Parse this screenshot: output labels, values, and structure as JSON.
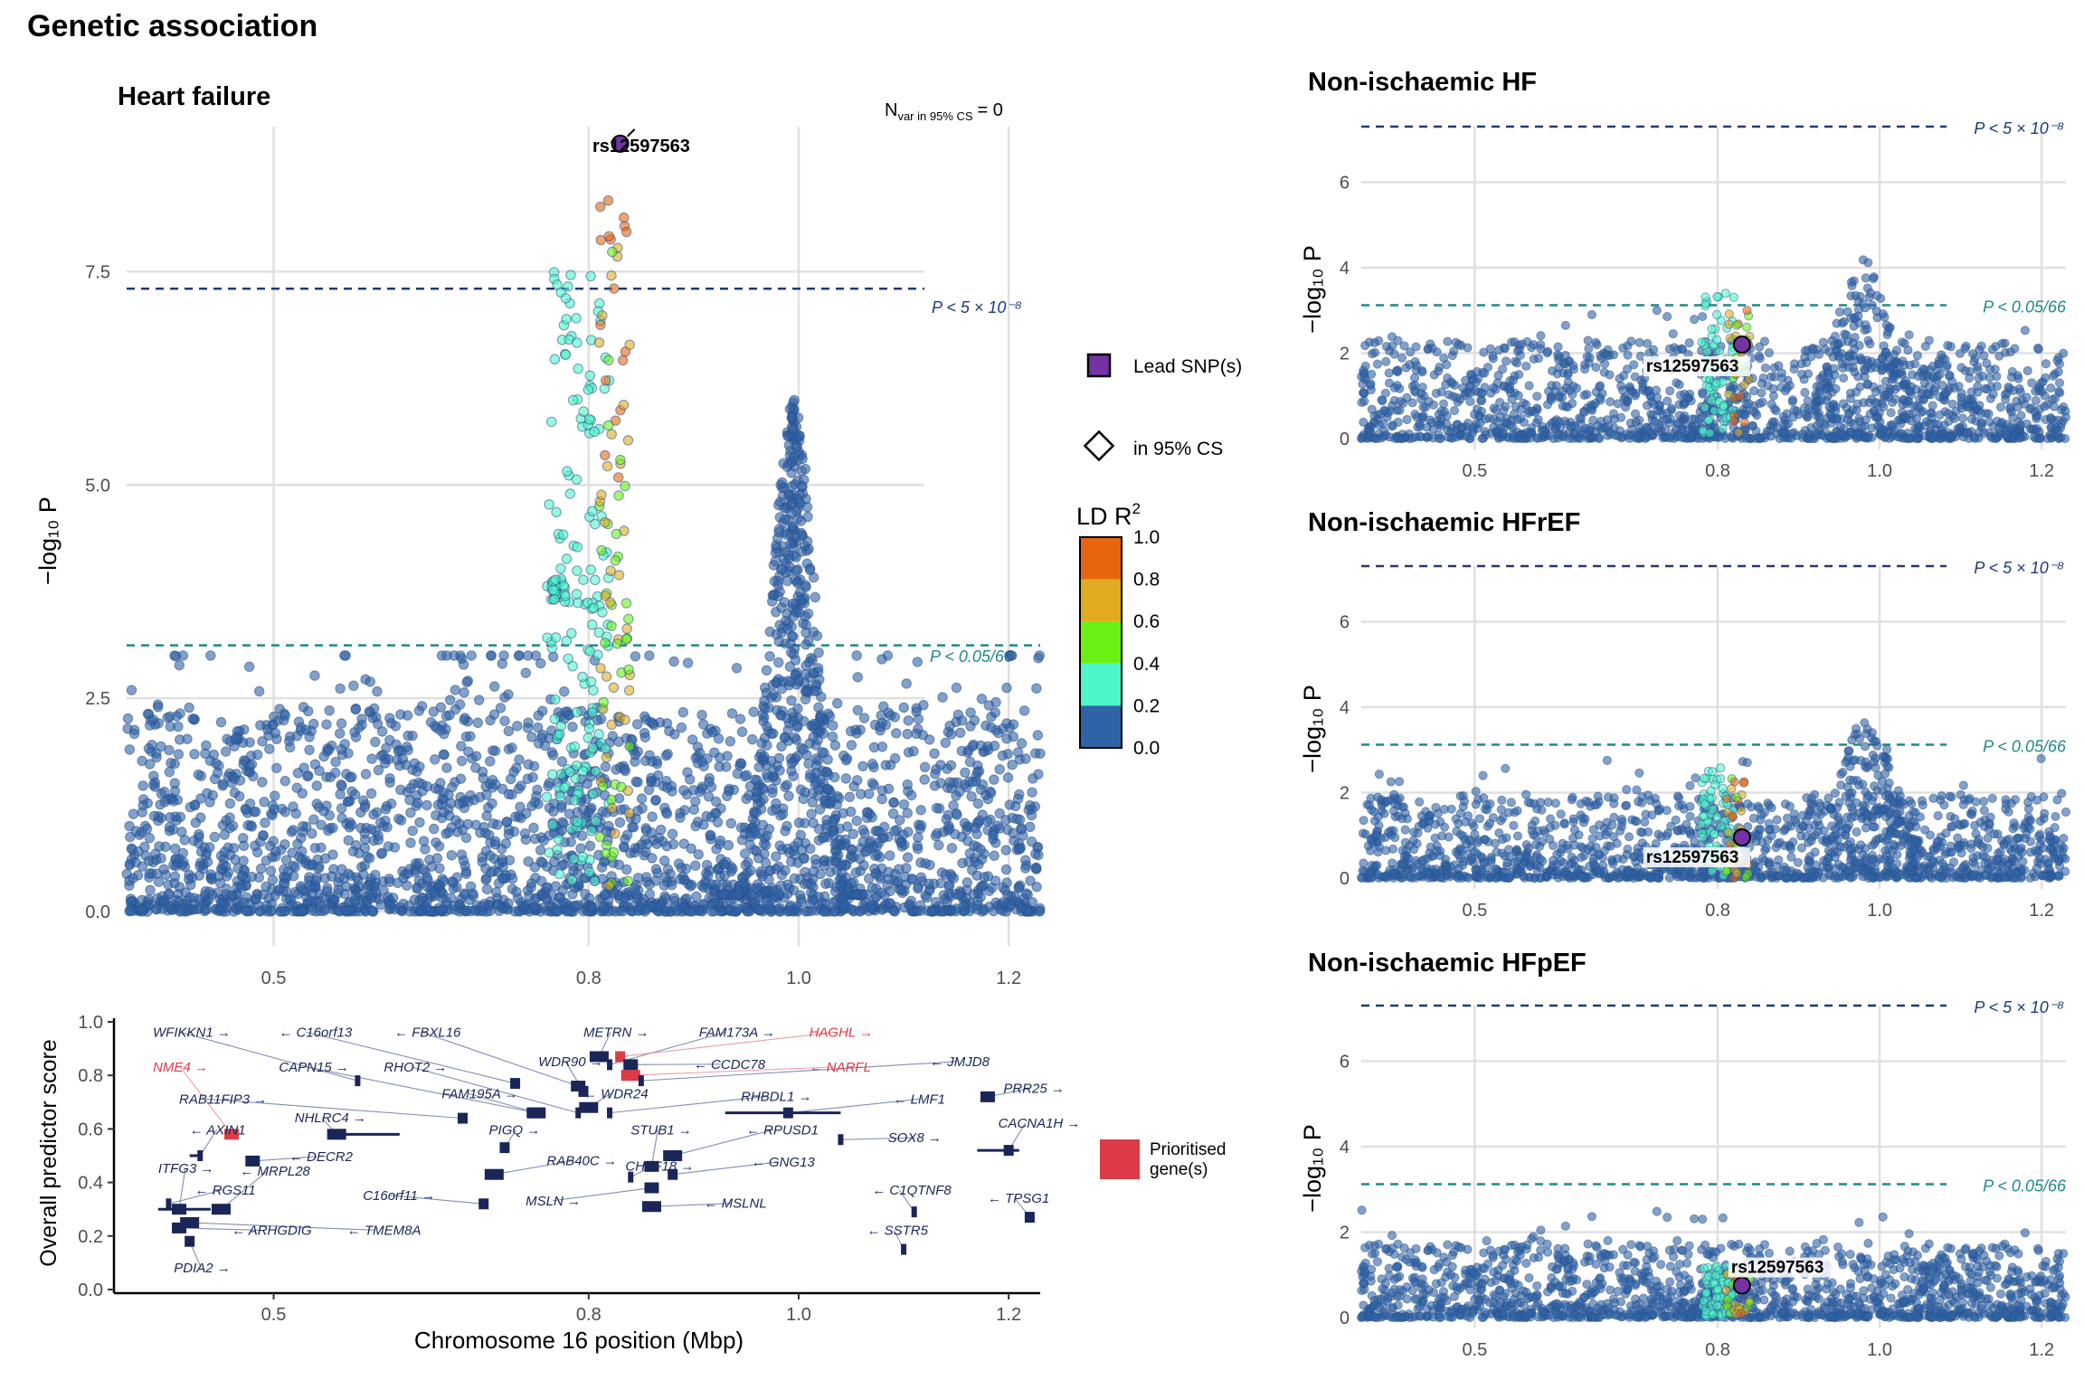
{
  "figure": {
    "title": "Genetic association"
  },
  "colors": {
    "ld_bins": [
      "#2E63A6",
      "#4EF5C9",
      "#6BF014",
      "#E0AB1E",
      "#E8650F"
    ],
    "lead": "#7433A3",
    "gw_line": "#1F3B73",
    "suggestive_line": "#1E8A86",
    "gene": "#1A2657",
    "prioritised": "#DC3B47"
  },
  "main_panel": {
    "title": "Heart failure",
    "ylabel": "−log₁₀ P",
    "n_var_prefix": "N",
    "n_var_sub": "var in 95% CS",
    "n_var_value": "= 0",
    "lead_label": "rs12597563",
    "gw_label": "P < 5 × 10⁻⁸",
    "sugg_label": "P < 0.05/66"
  },
  "gene_panel": {
    "ylabel": "Overall predictor score",
    "xlabel": "Chromosome 16 position (Mbp)"
  },
  "right_panels": [
    {
      "title": "Non-ischaemic HF",
      "ylabel": "−log₁₀ P",
      "lead_label": "rs12597563",
      "gw_label": "P < 5 × 10⁻⁸",
      "sugg_label": "P < 0.05/66"
    },
    {
      "title": "Non-ischaemic HFrEF",
      "ylabel": "−log₁₀ P",
      "lead_label": "rs12597563",
      "gw_label": "P < 5 × 10⁻⁸",
      "sugg_label": "P < 0.05/66"
    },
    {
      "title": "Non-ischaemic HFpEF",
      "ylabel": "−log₁₀ P",
      "lead_label": "rs12597563",
      "gw_label": "P < 5 × 10⁻⁸",
      "sugg_label": "P < 0.05/66"
    }
  ],
  "legend": {
    "lead_snp": "Lead SNP(s)",
    "in_cs": "in 95% CS",
    "ld_title": "LD R",
    "ld_ticks": [
      "1.0",
      "0.8",
      "0.6",
      "0.4",
      "0.2",
      "0.0"
    ],
    "prioritised_line1": "Prioritised",
    "prioritised_line2": "gene(s)"
  },
  "chart_data": [
    {
      "type": "scatter",
      "title": "Heart failure",
      "ylabel": "−log10 P",
      "xlim": [
        0.36,
        1.23
      ],
      "ylim": [
        0,
        9.2
      ],
      "x_ticks": [
        0.5,
        0.8,
        1.0,
        1.2
      ],
      "y_ticks": [
        0.0,
        2.5,
        5.0,
        7.5
      ],
      "grid": true,
      "thresholds": [
        {
          "label": "P < 5 × 10⁻⁸",
          "y": 7.3
        },
        {
          "label": "P < 0.05/66",
          "y": 3.12
        }
      ],
      "lead_snp": {
        "label": "rs12597563",
        "x": 0.83,
        "y": 9.0
      },
      "peaks": [
        {
          "x": 0.8,
          "y_max": 7.7,
          "ld": "0.2–0.4"
        },
        {
          "x": 0.82,
          "y_max": 8.5,
          "ld": "0.6–1.0"
        },
        {
          "x": 0.995,
          "y_max": 6.2,
          "ld": "0.0–0.2"
        }
      ],
      "background_range": [
        0,
        3
      ]
    },
    {
      "type": "table",
      "title": "",
      "ylabel": "Overall predictor score",
      "xlabel": "Chromosome 16 position (Mbp)",
      "y_ticks": [
        0.0,
        0.2,
        0.4,
        0.6,
        0.8,
        1.0
      ],
      "genes": [
        {
          "name": "WFIKKN1",
          "dir": "right",
          "lx": 0.385,
          "ly": 0.945,
          "x": 0.58,
          "y": 0.78,
          "prio": false
        },
        {
          "name": "C16orf13",
          "dir": "left",
          "lx": 0.505,
          "ly": 0.945,
          "x": 0.73,
          "y": 0.77,
          "prio": false
        },
        {
          "name": "FBXL16",
          "dir": "left",
          "lx": 0.615,
          "ly": 0.945,
          "x": 0.79,
          "y": 0.76,
          "prio": false
        },
        {
          "name": "METRN",
          "dir": "right",
          "lx": 0.795,
          "ly": 0.945,
          "x": 0.81,
          "y": 0.87,
          "prio": false
        },
        {
          "name": "FAM173A",
          "dir": "right",
          "lx": 0.905,
          "ly": 0.945,
          "x": 0.82,
          "y": 0.84,
          "prio": false
        },
        {
          "name": "HAGHL",
          "dir": "right",
          "lx": 1.01,
          "ly": 0.945,
          "x": 0.83,
          "y": 0.87,
          "prio": true
        },
        {
          "name": "NME4",
          "dir": "right",
          "lx": 0.385,
          "ly": 0.815,
          "x": 0.46,
          "y": 0.58,
          "prio": true
        },
        {
          "name": "CAPN15",
          "dir": "right",
          "lx": 0.505,
          "ly": 0.815,
          "x": 0.75,
          "y": 0.66,
          "prio": false
        },
        {
          "name": "RHOT2",
          "dir": "right",
          "lx": 0.605,
          "ly": 0.815,
          "x": 0.79,
          "y": 0.66,
          "prio": false
        },
        {
          "name": "WDR90",
          "dir": "right",
          "lx": 0.752,
          "ly": 0.835,
          "x": 0.795,
          "y": 0.74,
          "prio": false
        },
        {
          "name": "CCDC78",
          "dir": "left",
          "lx": 0.9,
          "ly": 0.825,
          "x": 0.84,
          "y": 0.84,
          "prio": false
        },
        {
          "name": "NARFL",
          "dir": "left",
          "lx": 1.01,
          "ly": 0.815,
          "x": 0.84,
          "y": 0.8,
          "prio": true
        },
        {
          "name": "JMJD8",
          "dir": "left",
          "lx": 1.125,
          "ly": 0.835,
          "x": 0.85,
          "y": 0.78,
          "prio": false
        },
        {
          "name": "RAB11FIP3",
          "dir": "right",
          "lx": 0.41,
          "ly": 0.695,
          "x": 0.68,
          "y": 0.64,
          "prio": false
        },
        {
          "name": "FAM195A",
          "dir": "right",
          "lx": 0.66,
          "ly": 0.715,
          "x": 0.75,
          "y": 0.66,
          "prio": false
        },
        {
          "name": "WDR24",
          "dir": "left",
          "lx": 0.795,
          "ly": 0.715,
          "x": 0.8,
          "y": 0.68,
          "prio": false
        },
        {
          "name": "RHBDL1",
          "dir": "right",
          "lx": 0.945,
          "ly": 0.705,
          "x": 0.82,
          "y": 0.66,
          "prio": false
        },
        {
          "name": "LMF1",
          "dir": "left",
          "lx": 1.09,
          "ly": 0.695,
          "x": 0.99,
          "y": 0.66,
          "prio": false
        },
        {
          "name": "PRR25",
          "dir": "right",
          "lx": 1.195,
          "ly": 0.735,
          "x": 1.18,
          "y": 0.72,
          "prio": false
        },
        {
          "name": "NHLRC4",
          "dir": "right",
          "lx": 0.52,
          "ly": 0.625,
          "x": 0.56,
          "y": 0.58,
          "prio": false
        },
        {
          "name": "AXIN1",
          "dir": "left",
          "lx": 0.42,
          "ly": 0.58,
          "x": 0.43,
          "y": 0.5,
          "prio": false
        },
        {
          "name": "PIGQ",
          "dir": "right",
          "lx": 0.705,
          "ly": 0.58,
          "x": 0.72,
          "y": 0.53,
          "prio": false
        },
        {
          "name": "STUB1",
          "dir": "right",
          "lx": 0.84,
          "ly": 0.58,
          "x": 0.86,
          "y": 0.46,
          "prio": false
        },
        {
          "name": "RPUSD1",
          "dir": "left",
          "lx": 0.95,
          "ly": 0.58,
          "x": 0.88,
          "y": 0.5,
          "prio": false
        },
        {
          "name": "SOX8",
          "dir": "right",
          "lx": 1.085,
          "ly": 0.55,
          "x": 1.04,
          "y": 0.56,
          "prio": false
        },
        {
          "name": "CACNA1H",
          "dir": "right",
          "lx": 1.19,
          "ly": 0.605,
          "x": 1.2,
          "y": 0.52,
          "prio": false
        },
        {
          "name": "DECR2",
          "dir": "left",
          "lx": 0.515,
          "ly": 0.48,
          "x": 0.48,
          "y": 0.48,
          "prio": false
        },
        {
          "name": "RAB40C",
          "dir": "right",
          "lx": 0.76,
          "ly": 0.465,
          "x": 0.71,
          "y": 0.43,
          "prio": false
        },
        {
          "name": "CHTF18",
          "dir": "right",
          "lx": 0.835,
          "ly": 0.445,
          "x": 0.84,
          "y": 0.42,
          "prio": false
        },
        {
          "name": "GNG13",
          "dir": "left",
          "lx": 0.955,
          "ly": 0.46,
          "x": 0.88,
          "y": 0.43,
          "prio": false
        },
        {
          "name": "ITFG3",
          "dir": "right",
          "lx": 0.39,
          "ly": 0.435,
          "x": 0.41,
          "y": 0.3,
          "prio": false
        },
        {
          "name": "MRPL28",
          "dir": "left",
          "lx": 0.468,
          "ly": 0.425,
          "x": 0.45,
          "y": 0.3,
          "prio": false
        },
        {
          "name": "RGS11",
          "dir": "left",
          "lx": 0.425,
          "ly": 0.355,
          "x": 0.4,
          "y": 0.32,
          "prio": false
        },
        {
          "name": "C16orf11",
          "dir": "right",
          "lx": 0.585,
          "ly": 0.335,
          "x": 0.7,
          "y": 0.32,
          "prio": false
        },
        {
          "name": "MSLN",
          "dir": "right",
          "lx": 0.74,
          "ly": 0.315,
          "x": 0.86,
          "y": 0.38,
          "prio": false
        },
        {
          "name": "MSLNL",
          "dir": "left",
          "lx": 0.91,
          "ly": 0.305,
          "x": 0.86,
          "y": 0.31,
          "prio": false
        },
        {
          "name": "C1QTNF8",
          "dir": "left",
          "lx": 1.07,
          "ly": 0.355,
          "x": 1.11,
          "y": 0.29,
          "prio": false
        },
        {
          "name": "TPSG1",
          "dir": "left",
          "lx": 1.18,
          "ly": 0.325,
          "x": 1.22,
          "y": 0.27,
          "prio": false
        },
        {
          "name": "ARHGDIG",
          "dir": "left",
          "lx": 0.46,
          "ly": 0.205,
          "x": 0.41,
          "y": 0.23,
          "prio": false
        },
        {
          "name": "TMEM8A",
          "dir": "left",
          "lx": 0.57,
          "ly": 0.205,
          "x": 0.42,
          "y": 0.25,
          "prio": false
        },
        {
          "name": "SSTR5",
          "dir": "left",
          "lx": 1.065,
          "ly": 0.205,
          "x": 1.1,
          "y": 0.15,
          "prio": false
        },
        {
          "name": "PDIA2",
          "dir": "right",
          "lx": 0.405,
          "ly": 0.065,
          "x": 0.42,
          "y": 0.18,
          "prio": false
        }
      ]
    },
    {
      "type": "scatter",
      "title": "Non-ischaemic HF",
      "xlim": [
        0.36,
        1.23
      ],
      "ylim": [
        0,
        7.3
      ],
      "x_ticks": [
        0.5,
        0.8,
        1.0,
        1.2
      ],
      "y_ticks": [
        0,
        2,
        4,
        6
      ],
      "thresholds": [
        {
          "label": "P < 5 × 10⁻⁸",
          "y": 7.3
        },
        {
          "label": "P < 0.05/66",
          "y": 3.12
        }
      ],
      "lead_snp": {
        "label": "rs12597563",
        "x": 0.83,
        "y": 2.2
      },
      "peaks": [
        {
          "x": 0.98,
          "y_max": 4.2,
          "ld": "0.0–0.2"
        },
        {
          "x": 0.8,
          "y_max": 3.4,
          "ld": "0.2–0.4"
        }
      ]
    },
    {
      "type": "scatter",
      "title": "Non-ischaemic HFrEF",
      "xlim": [
        0.36,
        1.23
      ],
      "ylim": [
        0,
        7.3
      ],
      "x_ticks": [
        0.5,
        0.8,
        1.0,
        1.2
      ],
      "y_ticks": [
        0,
        2,
        4,
        6
      ],
      "thresholds": [
        {
          "label": "P < 5 × 10⁻⁸",
          "y": 7.3
        },
        {
          "label": "P < 0.05/66",
          "y": 3.12
        }
      ],
      "lead_snp": {
        "label": "rs12597563",
        "x": 0.83,
        "y": 0.95
      },
      "peaks": [
        {
          "x": 0.985,
          "y_max": 3.8,
          "ld": "0.0–0.2"
        },
        {
          "x": 0.8,
          "y_max": 2.6,
          "ld": "0.2–0.4"
        }
      ]
    },
    {
      "type": "scatter",
      "title": "Non-ischaemic HFpEF",
      "xlim": [
        0.36,
        1.23
      ],
      "ylim": [
        0,
        7.3
      ],
      "x_ticks": [
        0.5,
        0.8,
        1.0,
        1.2
      ],
      "y_ticks": [
        0,
        2,
        4,
        6
      ],
      "thresholds": [
        {
          "label": "P < 5 × 10⁻⁸",
          "y": 7.3
        },
        {
          "label": "P < 0.05/66",
          "y": 3.12
        }
      ],
      "lead_snp": {
        "label": "rs12597563",
        "x": 0.83,
        "y": 0.75
      },
      "peaks": [
        {
          "x": 0.6,
          "y_max": 3.15,
          "ld": "0.0–0.2"
        }
      ]
    }
  ]
}
